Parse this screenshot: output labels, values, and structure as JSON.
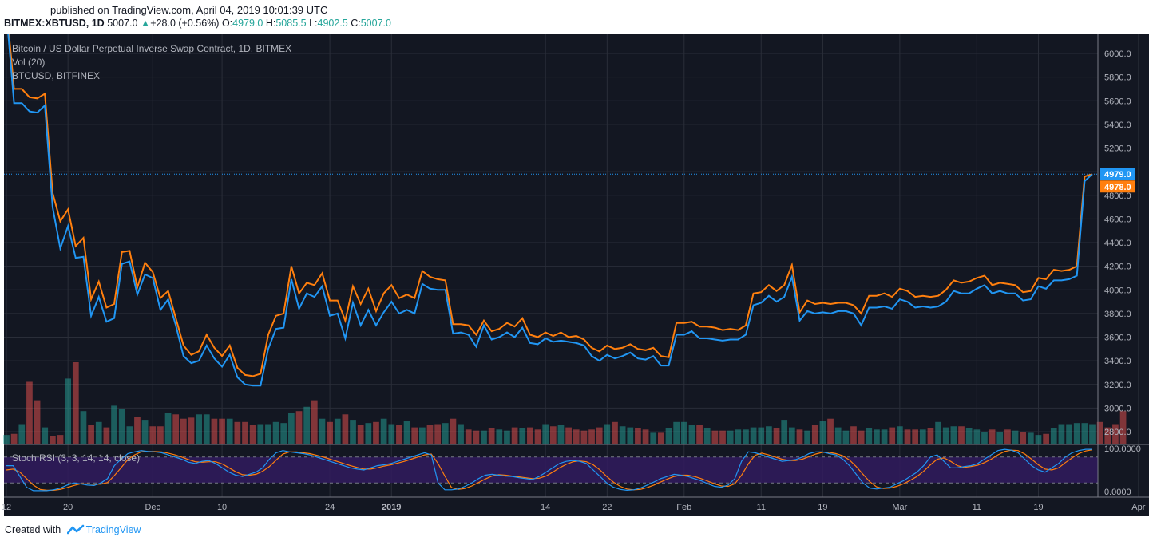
{
  "header": {
    "published": "published on TradingView.com, April 04, 2019 10:01:39 UTC",
    "symbol": "BITMEX:XBTUSD, 1D",
    "last": "5007.0",
    "change_arrow": "▲",
    "change": "+28.0 (+0.56%)",
    "o_label": "O:",
    "o": "4979.0",
    "h_label": "H:",
    "h": "5085.5",
    "l_label": "L:",
    "l": "4902.5",
    "c_label": "C:",
    "c": "5007.0"
  },
  "legend": {
    "main": "Bitcoin / US Dollar Perpetual Inverse Swap Contract, 1D, BITMEX",
    "vol": "Vol (20)",
    "compare": "BTCUSD, BITFINEX",
    "stoch": "Stoch RSI (3, 3, 14, 14, close)"
  },
  "footer": {
    "created": "Created with",
    "brand": "TradingView"
  },
  "colors": {
    "background": "#131722",
    "grid": "#2a2e39",
    "xbt_line": "#2196f3",
    "btc_line": "#ff7f0e",
    "vol_up": "#26a69a",
    "vol_down": "#ef5350",
    "stoch_k": "#2196f3",
    "stoch_d": "#ff7f0e",
    "stoch_band": "#311b5e"
  },
  "chart_data": {
    "type": "line",
    "title": "Bitcoin / US Dollar Perpetual Inverse Swap Contract, 1D, BITMEX",
    "ylim": [
      2700,
      6100
    ],
    "yticks": [
      2800,
      3000,
      3200,
      3400,
      3600,
      3800,
      4000,
      4200,
      4400,
      4600,
      4800,
      5000,
      5200,
      5400,
      5600,
      5800,
      6000
    ],
    "ytick_labels": [
      "2800.0",
      "3000.0",
      "3200.0",
      "3400.0",
      "3600.0",
      "3800.0",
      "4000.0",
      "4200.0",
      "4400.0",
      "4600.0",
      "4800.0",
      "5000.0",
      "5200.0",
      "5400.0",
      "5600.0",
      "5800.0",
      "6000.0"
    ],
    "xlabels": [
      {
        "label": "12",
        "day": 0
      },
      {
        "label": "20",
        "day": 8
      },
      {
        "label": "Dec",
        "day": 19
      },
      {
        "label": "10",
        "day": 28
      },
      {
        "label": "24",
        "day": 42
      },
      {
        "label": "2019",
        "day": 50
      },
      {
        "label": "14",
        "day": 70
      },
      {
        "label": "22",
        "day": 78
      },
      {
        "label": "Feb",
        "day": 88
      },
      {
        "label": "11",
        "day": 98
      },
      {
        "label": "19",
        "day": 106
      },
      {
        "label": "Mar",
        "day": 116
      },
      {
        "label": "11",
        "day": 126
      },
      {
        "label": "19",
        "day": 134
      },
      {
        "label": "Apr",
        "day": 147
      }
    ],
    "grid": true,
    "last_marker": {
      "value": 4979.0,
      "label": "4979.0"
    },
    "price_labels": [
      {
        "value": 4979.0,
        "label": "4979.0",
        "series": "XBTUSD"
      },
      {
        "value": 4978.0,
        "label": "4978.0",
        "series": "BTCUSD"
      }
    ],
    "series": [
      {
        "key": "xbtusd",
        "values": [
          6350,
          5580,
          5580,
          5510,
          5500,
          5560,
          4700,
          4350,
          4540,
          4270,
          4280,
          3780,
          3940,
          3730,
          3760,
          4220,
          4240,
          3960,
          4130,
          4100,
          3830,
          3920,
          3700,
          3440,
          3380,
          3400,
          3530,
          3420,
          3350,
          3450,
          3260,
          3200,
          3190,
          3190,
          3500,
          3670,
          3680,
          4090,
          3840,
          3970,
          3940,
          4030,
          3780,
          3800,
          3590,
          3890,
          3700,
          3830,
          3700,
          3810,
          3900,
          3800,
          3830,
          3800,
          4050,
          4010,
          4000,
          4000,
          3630,
          3640,
          3620,
          3520,
          3700,
          3580,
          3600,
          3640,
          3600,
          3680,
          3550,
          3540,
          3590,
          3560,
          3570,
          3560,
          3550,
          3530,
          3440,
          3400,
          3450,
          3420,
          3440,
          3470,
          3420,
          3410,
          3440,
          3360,
          3360,
          3620,
          3620,
          3650,
          3590,
          3590,
          3580,
          3570,
          3580,
          3580,
          3620,
          3870,
          3890,
          3950,
          3900,
          3940,
          4110,
          3740,
          3820,
          3800,
          3810,
          3800,
          3820,
          3820,
          3800,
          3700,
          3850,
          3850,
          3860,
          3840,
          3920,
          3900,
          3850,
          3860,
          3850,
          3860,
          3900,
          3990,
          3970,
          3970,
          4010,
          4040,
          3970,
          3990,
          3970,
          3970,
          3910,
          3920,
          4030,
          4010,
          4080,
          4080,
          4090,
          4120,
          4920,
          4979
        ]
      },
      {
        "key": "btcusd",
        "values": [
          6400,
          5700,
          5700,
          5630,
          5620,
          5660,
          4820,
          4580,
          4680,
          4370,
          4440,
          3920,
          4070,
          3850,
          3880,
          4320,
          4330,
          4020,
          4230,
          4150,
          3930,
          3990,
          3760,
          3530,
          3450,
          3480,
          3620,
          3510,
          3440,
          3530,
          3340,
          3280,
          3270,
          3290,
          3620,
          3780,
          3800,
          4200,
          3970,
          4060,
          4040,
          4140,
          3910,
          3910,
          3740,
          4030,
          3880,
          4010,
          3820,
          3970,
          4040,
          3930,
          3960,
          3930,
          4160,
          4110,
          4090,
          4080,
          3710,
          3710,
          3700,
          3620,
          3740,
          3650,
          3670,
          3720,
          3690,
          3760,
          3620,
          3600,
          3640,
          3610,
          3640,
          3600,
          3610,
          3580,
          3510,
          3480,
          3530,
          3500,
          3510,
          3540,
          3500,
          3490,
          3510,
          3440,
          3430,
          3720,
          3720,
          3730,
          3690,
          3690,
          3680,
          3660,
          3670,
          3660,
          3700,
          3970,
          3980,
          4040,
          3990,
          4040,
          4210,
          3810,
          3910,
          3880,
          3890,
          3880,
          3890,
          3890,
          3870,
          3800,
          3950,
          3950,
          3970,
          3940,
          4010,
          3990,
          3940,
          3950,
          3940,
          3950,
          4000,
          4080,
          4060,
          4070,
          4100,
          4120,
          4040,
          4060,
          4050,
          4040,
          3980,
          3990,
          4100,
          4090,
          4170,
          4160,
          4170,
          4200,
          4960,
          4978
        ]
      }
    ],
    "volume": {
      "ylim": [
        0,
        100
      ],
      "values": [
        8,
        9,
        18,
        57,
        40,
        15,
        7,
        8,
        60,
        75,
        30,
        17,
        20,
        15,
        35,
        32,
        16,
        25,
        22,
        16,
        16,
        28,
        27,
        23,
        24,
        27,
        27,
        23,
        23,
        23,
        20,
        20,
        17,
        18,
        18,
        20,
        19,
        28,
        30,
        34,
        40,
        23,
        20,
        23,
        27,
        22,
        17,
        19,
        20,
        23,
        18,
        17,
        21,
        15,
        15,
        17,
        18,
        19,
        23,
        18,
        13,
        12,
        12,
        14,
        13,
        12,
        15,
        14,
        15,
        13,
        18,
        16,
        17,
        15,
        13,
        12,
        13,
        15,
        18,
        20,
        16,
        15,
        14,
        13,
        10,
        10,
        14,
        20,
        20,
        17,
        17,
        14,
        12,
        12,
        12,
        13,
        13,
        15,
        15,
        16,
        14,
        22,
        15,
        13,
        12,
        17,
        21,
        23,
        15,
        12,
        16,
        12,
        14,
        13,
        13,
        15,
        16,
        13,
        13,
        13,
        14,
        20,
        15,
        16,
        16,
        14,
        13,
        11,
        13,
        11,
        13,
        12,
        11,
        10,
        8,
        9,
        14,
        18,
        18,
        19,
        19,
        18,
        20,
        15,
        18,
        30
      ],
      "colors": "mixed"
    },
    "stoch_rsi": {
      "ylim": [
        0,
        100
      ],
      "band": [
        20,
        80
      ],
      "yticks": [
        0,
        100
      ],
      "ytick_labels": [
        "0.0000",
        "100.0000"
      ],
      "k": [
        60,
        60,
        35,
        10,
        2,
        2,
        2,
        4,
        8,
        15,
        20,
        18,
        15,
        14,
        20,
        30,
        60,
        75,
        88,
        92,
        95,
        93,
        92,
        90,
        85,
        80,
        75,
        68,
        65,
        70,
        72,
        65,
        55,
        45,
        38,
        35,
        40,
        45,
        55,
        75,
        90,
        95,
        92,
        90,
        88,
        85,
        80,
        75,
        70,
        65,
        60,
        55,
        52,
        50,
        55,
        60,
        62,
        65,
        70,
        75,
        80,
        85,
        90,
        85,
        20,
        4,
        4,
        6,
        12,
        20,
        30,
        38,
        40,
        38,
        36,
        35,
        32,
        30,
        28,
        35,
        45,
        55,
        65,
        70,
        72,
        70,
        65,
        50,
        35,
        20,
        10,
        5,
        3,
        4,
        8,
        15,
        22,
        30,
        35,
        40,
        38,
        35,
        30,
        25,
        18,
        12,
        10,
        15,
        30,
        70,
        92,
        90,
        85,
        80,
        75,
        70,
        72,
        74,
        80,
        88,
        92,
        92,
        88,
        85,
        75,
        60,
        40,
        20,
        8,
        6,
        8,
        10,
        18,
        25,
        35,
        45,
        60,
        80,
        85,
        70,
        55,
        55,
        58,
        60,
        65,
        75,
        85,
        95,
        98,
        96,
        90,
        75,
        60,
        50,
        45,
        55,
        65,
        80,
        90,
        95,
        98,
        98
      ],
      "d": [
        50,
        52,
        45,
        30,
        15,
        5,
        3,
        3,
        5,
        9,
        14,
        18,
        18,
        17,
        17,
        21,
        37,
        55,
        74,
        85,
        92,
        93,
        93,
        92,
        89,
        85,
        80,
        74,
        69,
        68,
        69,
        69,
        64,
        55,
        46,
        39,
        38,
        40,
        47,
        58,
        73,
        87,
        92,
        92,
        90,
        88,
        84,
        80,
        75,
        70,
        65,
        60,
        56,
        52,
        52,
        55,
        59,
        62,
        66,
        70,
        75,
        80,
        85,
        87,
        65,
        36,
        9,
        5,
        7,
        13,
        21,
        29,
        36,
        39,
        38,
        36,
        34,
        32,
        30,
        31,
        36,
        45,
        55,
        63,
        69,
        71,
        69,
        62,
        50,
        35,
        22,
        12,
        6,
        4,
        5,
        9,
        15,
        22,
        29,
        35,
        38,
        38,
        35,
        30,
        24,
        18,
        13,
        12,
        18,
        38,
        64,
        84,
        89,
        85,
        80,
        75,
        72,
        72,
        75,
        81,
        87,
        91,
        91,
        88,
        83,
        73,
        58,
        40,
        23,
        11,
        7,
        8,
        12,
        18,
        26,
        35,
        47,
        62,
        75,
        78,
        70,
        60,
        56,
        58,
        61,
        67,
        75,
        85,
        93,
        96,
        95,
        87,
        75,
        62,
        52,
        50,
        55,
        67,
        78,
        88,
        94,
        97
      ]
    }
  }
}
